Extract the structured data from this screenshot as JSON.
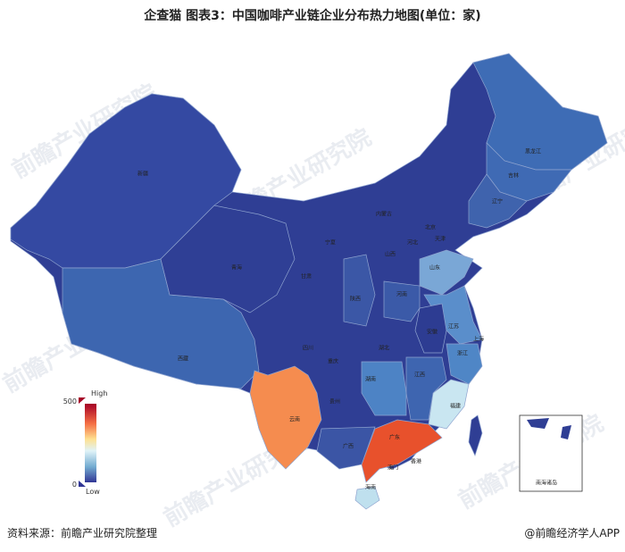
{
  "header": {
    "title": "企查猫 图表3：中国咖啡产业链企业分布热力地图(单位：家)"
  },
  "map": {
    "base_color": "#2f3e94",
    "regions": [
      {
        "name": "新疆",
        "color": "#3449a2"
      },
      {
        "name": "西藏",
        "color": "#3d66b0"
      },
      {
        "name": "青海",
        "color": "#2f3f95"
      },
      {
        "name": "黑龙江",
        "color": "#3e6cb5"
      },
      {
        "name": "吉林",
        "color": "#3f6ab4"
      },
      {
        "name": "辽宁",
        "color": "#3f63ad"
      },
      {
        "name": "山东",
        "color": "#7aa7d6"
      },
      {
        "name": "江苏",
        "color": "#5a8ecb"
      },
      {
        "name": "安徽",
        "color": "#2d3c92"
      },
      {
        "name": "浙江",
        "color": "#4f86c6"
      },
      {
        "name": "福建",
        "color": "#c9e6f1"
      },
      {
        "name": "江西",
        "color": "#3e65b0"
      },
      {
        "name": "湖南",
        "color": "#4d83c5"
      },
      {
        "name": "广东",
        "color": "#e8512c"
      },
      {
        "name": "广西",
        "color": "#3b55a5"
      },
      {
        "name": "云南",
        "color": "#f58c4f"
      },
      {
        "name": "海南",
        "color": "#bfe0ee"
      },
      {
        "name": "河南",
        "color": "#3b5aa8"
      },
      {
        "name": "陕西",
        "color": "#3b57a6"
      },
      {
        "name": "内蒙古"
      },
      {
        "name": "甘肃"
      },
      {
        "name": "宁夏"
      },
      {
        "name": "山西"
      },
      {
        "name": "河北"
      },
      {
        "name": "北京"
      },
      {
        "name": "天津"
      },
      {
        "name": "四川"
      },
      {
        "name": "重庆"
      },
      {
        "name": "湖北"
      },
      {
        "name": "贵州"
      },
      {
        "name": "上海"
      },
      {
        "name": "香港"
      },
      {
        "name": "澳门"
      }
    ],
    "inset_label": "南海诸岛"
  },
  "legend": {
    "high_label": "High",
    "low_label": "Low",
    "max": 500,
    "min": 0
  },
  "watermark": "前瞻产业研究院",
  "footer": {
    "source": "资料来源：前瞻产业研究院整理",
    "credit": "@前瞻经济学人APP"
  }
}
